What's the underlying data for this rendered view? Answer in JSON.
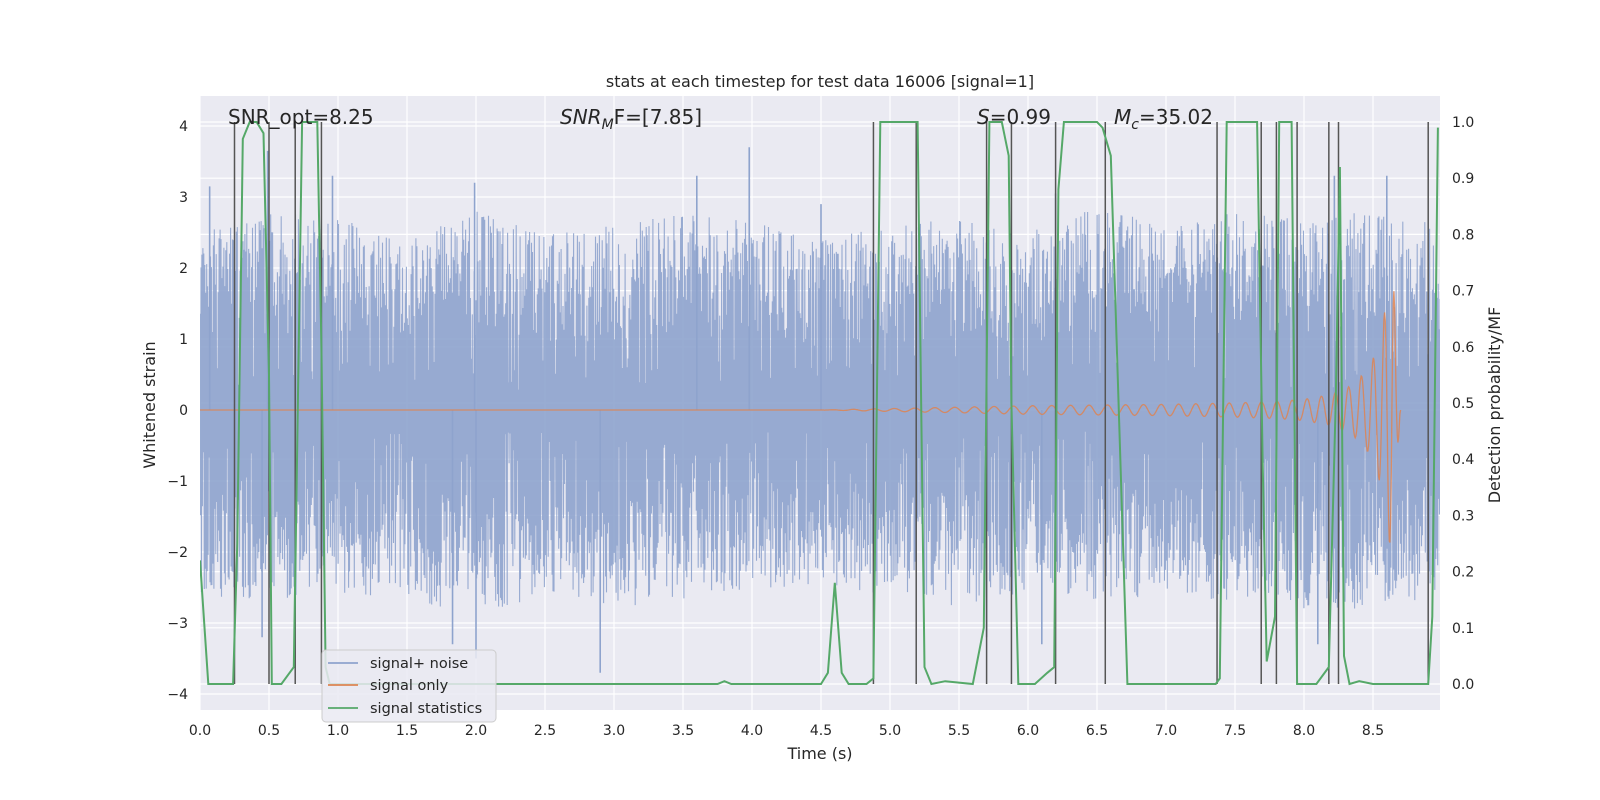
{
  "chart_data": {
    "type": "line",
    "title": "stats at each timestep for test data 16006 [signal=1]",
    "xlabel": "Time (s)",
    "ylabel": "Whitened strain",
    "y2label": "Detection probability/MF",
    "xlim": [
      0.0,
      9.0
    ],
    "ylim": [
      -4.3,
      4.4
    ],
    "y2lim": [
      -0.05,
      1.045
    ],
    "xticks": [
      "0.0",
      "0.5",
      "1.0",
      "1.5",
      "2.0",
      "2.5",
      "3.0",
      "3.5",
      "4.0",
      "4.5",
      "5.0",
      "5.5",
      "6.0",
      "6.5",
      "7.0",
      "7.5",
      "8.0",
      "8.5"
    ],
    "yticks": [
      "4",
      "3",
      "2",
      "1",
      "0",
      "−1",
      "−2",
      "−3",
      "−4"
    ],
    "y2ticks": [
      "1.0",
      "0.9",
      "0.8",
      "0.7",
      "0.6",
      "0.5",
      "0.4",
      "0.3",
      "0.2",
      "0.1",
      "0.0"
    ],
    "annotations": {
      "snr_opt": "SNR_opt=8.25",
      "snr_mf_main": "SNR",
      "snr_mf_sub": "M",
      "snr_mf_rest": "F=[7.85]",
      "s_main": "S",
      "s_rest": "=0.99",
      "mc_main": "M",
      "mc_sub": "c",
      "mc_rest": "=35.02"
    },
    "legend": {
      "placement": "lower-left",
      "entries": [
        "signal+ noise",
        "signal only",
        "signal statistics"
      ]
    },
    "colors": {
      "noise": "#8ea3cd",
      "signal": "#dd8452",
      "stats": "#55a868",
      "vlines": "#555555",
      "background": "#eaeaf2",
      "grid": "#ffffff"
    },
    "series": [
      {
        "name": "signal statistics",
        "x": [
          0.0,
          0.06,
          0.08,
          0.24,
          0.27,
          0.31,
          0.36,
          0.41,
          0.46,
          0.5,
          0.52,
          0.54,
          0.59,
          0.68,
          0.7,
          0.74,
          0.79,
          0.85,
          0.88,
          0.91,
          0.94,
          0.98,
          1.04,
          1.1,
          1.2,
          1.5,
          2.0,
          2.5,
          3.0,
          3.5,
          3.75,
          3.8,
          3.85,
          4.0,
          4.5,
          4.55,
          4.6,
          4.65,
          4.7,
          4.83,
          4.88,
          4.93,
          5.2,
          5.25,
          5.3,
          5.4,
          5.6,
          5.68,
          5.72,
          5.76,
          5.81,
          5.86,
          5.88,
          5.93,
          5.98,
          6.05,
          6.14,
          6.19,
          6.22,
          6.26,
          6.5,
          6.54,
          6.6,
          6.72,
          6.9,
          7.1,
          7.36,
          7.39,
          7.44,
          7.66,
          7.7,
          7.73,
          7.79,
          7.82,
          7.86,
          7.91,
          7.95,
          7.99,
          8.09,
          8.18,
          8.23,
          8.26,
          8.29,
          8.33,
          8.4,
          8.5,
          8.6,
          8.7,
          8.83,
          8.9,
          8.93,
          8.97
        ],
        "values": [
          0.22,
          0.0,
          0.0,
          0.0,
          0.25,
          0.97,
          1.0,
          1.0,
          0.98,
          0.55,
          0.0,
          0.0,
          0.0,
          0.03,
          0.35,
          1.0,
          1.0,
          1.0,
          0.6,
          0.03,
          0.0,
          0.0,
          0.0,
          0.0,
          0.0,
          0.0,
          0.0,
          0.0,
          0.0,
          0.0,
          0.0,
          0.005,
          0.0,
          0.0,
          0.0,
          0.02,
          0.18,
          0.02,
          0.0,
          0.0,
          0.01,
          1.0,
          1.0,
          0.03,
          0.0,
          0.005,
          0.0,
          0.1,
          1.0,
          1.0,
          1.0,
          0.94,
          0.5,
          0.0,
          0.0,
          0.0,
          0.02,
          0.03,
          0.88,
          1.0,
          1.0,
          0.99,
          0.94,
          0.0,
          0.0,
          0.0,
          0.0,
          0.01,
          1.0,
          1.0,
          0.4,
          0.04,
          0.12,
          1.0,
          1.0,
          1.0,
          0.0,
          0.0,
          0.0,
          0.03,
          0.5,
          0.92,
          0.05,
          0.0,
          0.005,
          0.0,
          0.0,
          0.0,
          0.0,
          0.0,
          0.12,
          0.99
        ]
      },
      {
        "name": "signal only",
        "description_points": "chirp envelope",
        "x": [
          0.0,
          4.5,
          5.0,
          5.5,
          6.0,
          6.5,
          7.0,
          7.5,
          7.8,
          8.0,
          8.2,
          8.35,
          8.45,
          8.52,
          8.57,
          8.6,
          8.62,
          8.64,
          8.65,
          8.67,
          8.7
        ],
        "values": [
          0.0,
          0.0,
          0.02,
          0.04,
          0.06,
          0.07,
          0.08,
          0.1,
          0.12,
          0.15,
          0.22,
          0.35,
          0.55,
          0.8,
          1.2,
          1.6,
          1.9,
          2.2,
          1.8,
          0.8,
          0.0
        ]
      }
    ],
    "noise_band": {
      "x": [
        0.0,
        0.5,
        1.0,
        1.5,
        2.0,
        2.5,
        3.0,
        3.5,
        4.0,
        4.5,
        5.0,
        5.5,
        6.0,
        6.5,
        7.0,
        7.5,
        8.0,
        8.5,
        9.0
      ],
      "upper": [
        2.5,
        2.8,
        2.7,
        2.4,
        2.8,
        2.5,
        2.6,
        2.8,
        2.7,
        2.4,
        2.6,
        2.7,
        2.5,
        2.9,
        2.6,
        2.8,
        2.7,
        2.8,
        2.6
      ],
      "lower": [
        -2.6,
        -2.7,
        -2.6,
        -2.7,
        -2.9,
        -2.6,
        -2.8,
        -2.7,
        -2.5,
        -2.5,
        -2.6,
        -2.8,
        -2.6,
        -2.7,
        -2.6,
        -2.7,
        -2.8,
        -2.8,
        -2.6
      ],
      "peaks": [
        [
          0.07,
          3.15
        ],
        [
          0.49,
          3.65
        ],
        [
          0.96,
          3.3
        ],
        [
          1.99,
          3.2
        ],
        [
          3.6,
          3.3
        ],
        [
          3.98,
          3.7
        ],
        [
          4.5,
          2.9
        ],
        [
          6.2,
          3.05
        ],
        [
          8.22,
          3.3
        ],
        [
          8.6,
          3.3
        ]
      ],
      "troughs": [
        [
          0.45,
          -3.2
        ],
        [
          1.83,
          -3.3
        ],
        [
          2.9,
          -3.7
        ],
        [
          2.0,
          -3.5
        ],
        [
          5.7,
          -3.2
        ],
        [
          6.1,
          -3.3
        ],
        [
          8.1,
          -3.3
        ]
      ]
    },
    "vertical_lines_x": [
      0.25,
      0.5,
      0.69,
      0.88,
      4.88,
      5.19,
      5.7,
      5.88,
      6.2,
      6.56,
      7.37,
      7.69,
      7.8,
      7.95,
      8.18,
      8.25,
      8.9
    ]
  }
}
